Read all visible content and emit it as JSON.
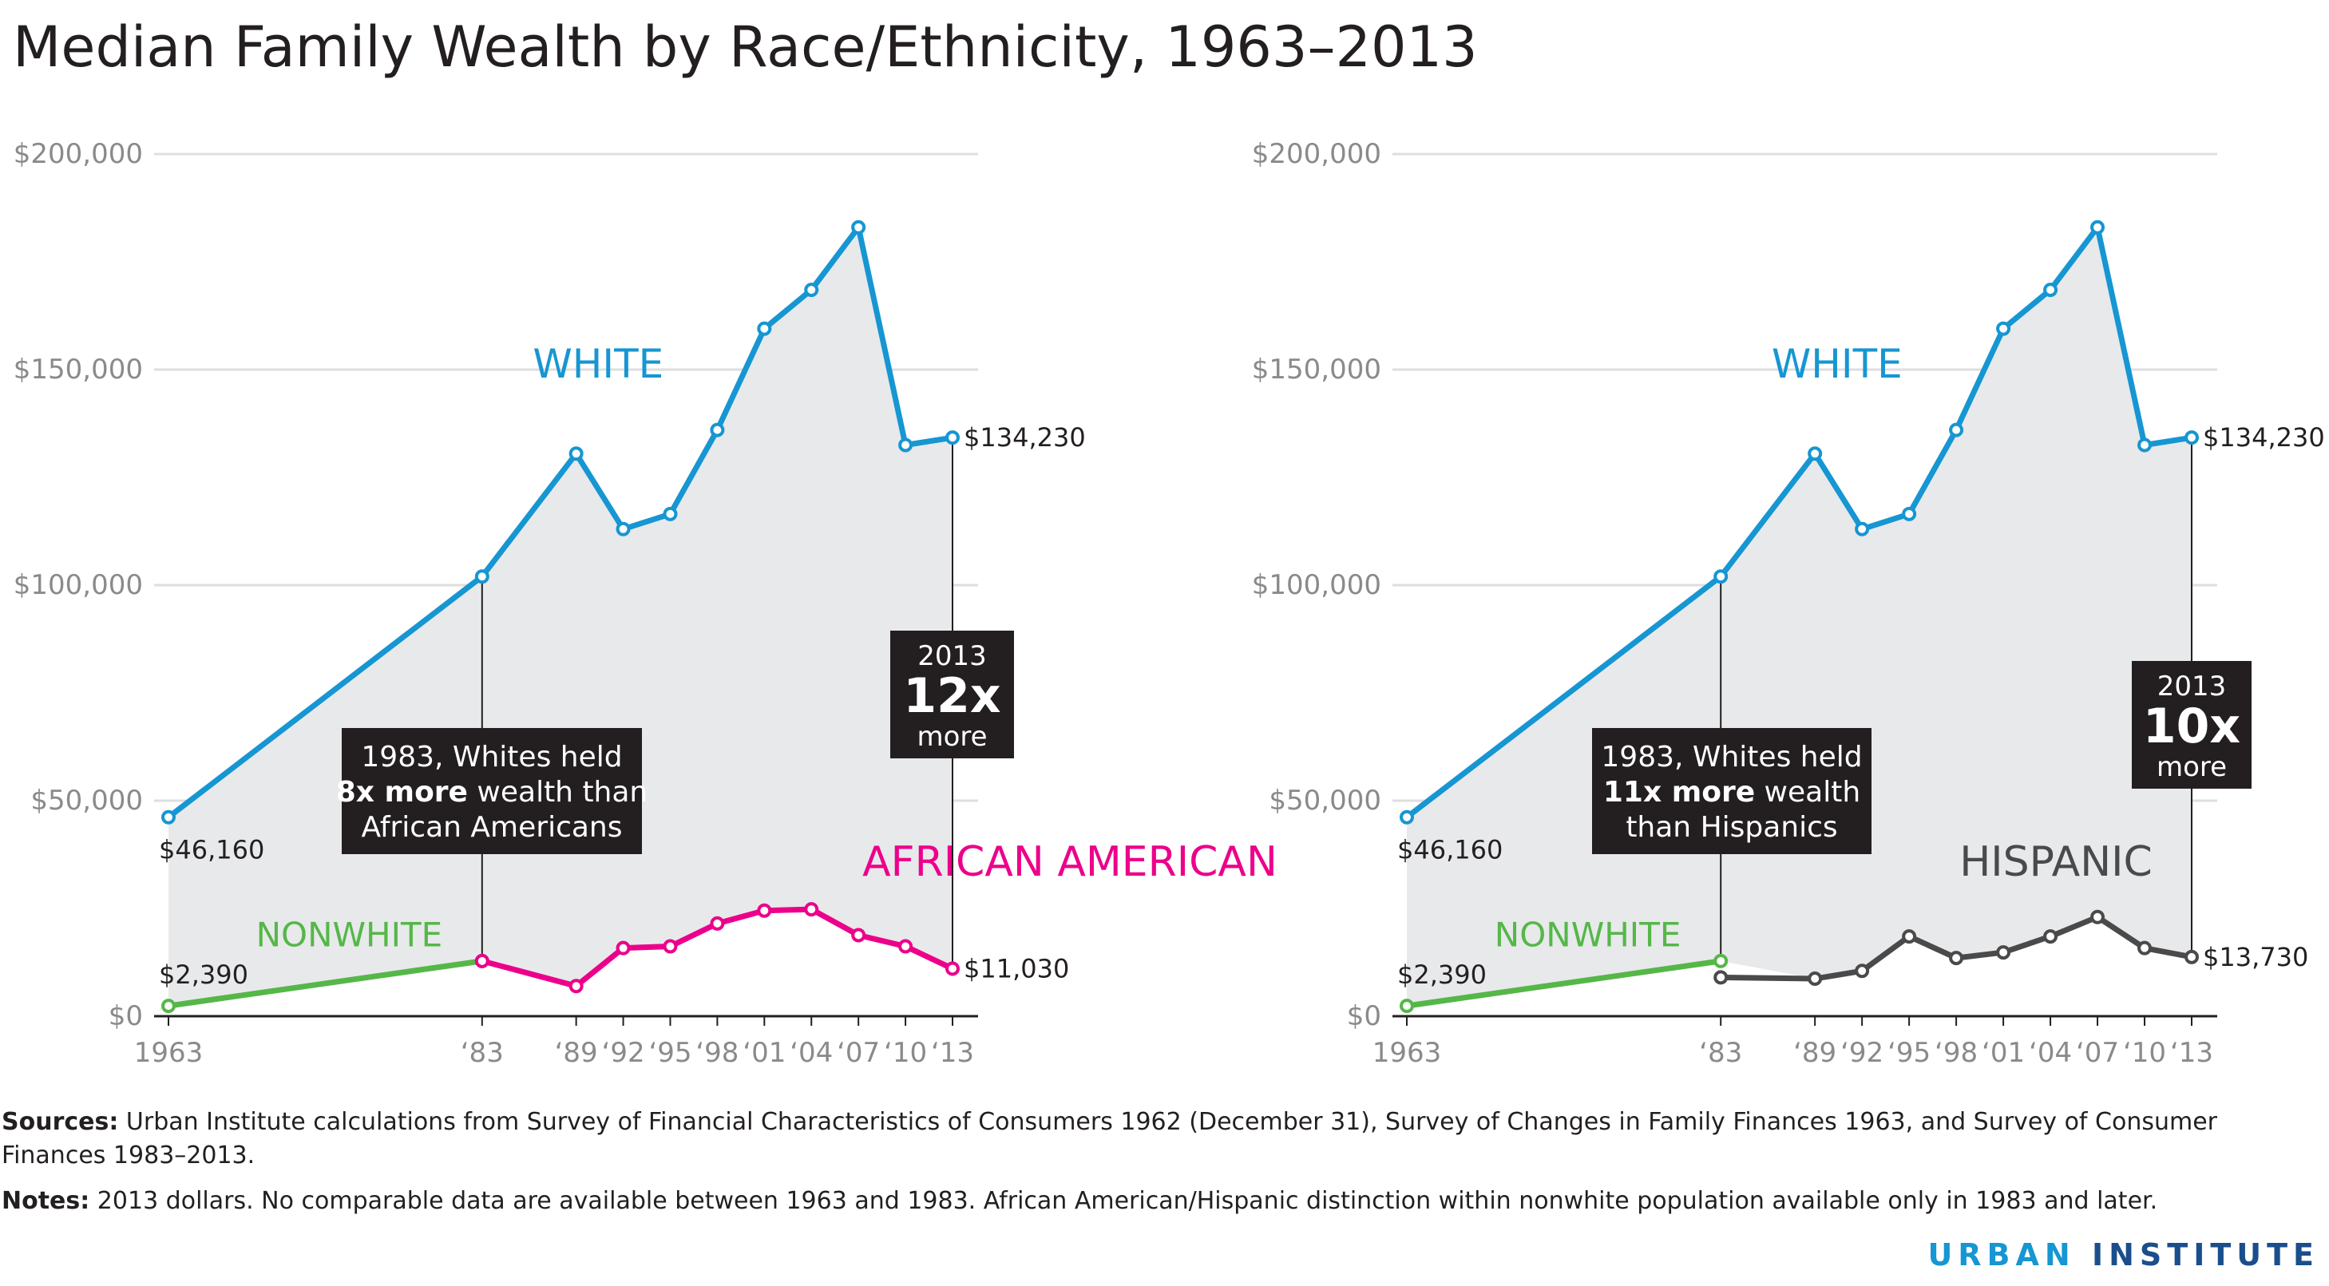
{
  "title": "Median Family Wealth by Race/Ethnicity, 1963–2013",
  "colors": {
    "white_line": "#1696d2",
    "african_american_line": "#ec008b",
    "hispanic_line": "#4a4a4a",
    "nonwhite_line": "#55b748",
    "area_fill": "#e8e9eb",
    "grid": "#dedede",
    "callout_bg": "#231f20"
  },
  "chart_data": [
    {
      "type": "line",
      "x": [
        1963,
        1983,
        1989,
        1992,
        1995,
        1998,
        2001,
        2004,
        2007,
        2010,
        2013
      ],
      "x_tick_labels": [
        "1963",
        "‘83",
        "‘89",
        "‘92",
        "‘95",
        "‘98",
        "‘01",
        "‘04",
        "‘07",
        "‘10",
        "‘13"
      ],
      "y_ticks": [
        0,
        50000,
        100000,
        150000,
        200000
      ],
      "y_tick_labels": [
        "$0",
        "$50,000",
        "$100,000",
        "$150,000",
        "$200,000"
      ],
      "ylim": [
        0,
        200000
      ],
      "grid": true,
      "series": [
        {
          "name": "WHITE",
          "x": [
            1963,
            1983,
            1989,
            1992,
            1995,
            1998,
            2001,
            2004,
            2007,
            2010,
            2013
          ],
          "values": [
            46160,
            102000,
            130500,
            113000,
            116500,
            136000,
            159500,
            168500,
            183000,
            132500,
            134230
          ]
        },
        {
          "name": "NONWHITE",
          "x": [
            1963,
            1983
          ],
          "values": [
            2390,
            12800
          ]
        },
        {
          "name": "AFRICAN AMERICAN",
          "x": [
            1983,
            1989,
            1992,
            1995,
            1998,
            2001,
            2004,
            2007,
            2010,
            2013
          ],
          "values": [
            12800,
            7000,
            15800,
            16200,
            21500,
            24500,
            24800,
            18800,
            16200,
            11030
          ]
        }
      ],
      "value_labels": {
        "white_start": "$46,160",
        "white_end": "$134,230",
        "nonwhite_start": "$2,390",
        "minority_end": "$11,030"
      },
      "callout_1983": [
        "1983, Whites held",
        "8x more",
        " wealth than",
        "African Americans"
      ],
      "callout_2013": {
        "year": "2013",
        "ratio": "12x",
        "word": "more"
      }
    },
    {
      "type": "line",
      "x": [
        1963,
        1983,
        1989,
        1992,
        1995,
        1998,
        2001,
        2004,
        2007,
        2010,
        2013
      ],
      "x_tick_labels": [
        "1963",
        "‘83",
        "‘89",
        "‘92",
        "‘95",
        "‘98",
        "‘01",
        "‘04",
        "‘07",
        "‘10",
        "‘13"
      ],
      "y_ticks": [
        0,
        50000,
        100000,
        150000,
        200000
      ],
      "y_tick_labels": [
        "$0",
        "$50,000",
        "$100,000",
        "$150,000",
        "$200,000"
      ],
      "ylim": [
        0,
        200000
      ],
      "grid": true,
      "series": [
        {
          "name": "WHITE",
          "x": [
            1963,
            1983,
            1989,
            1992,
            1995,
            1998,
            2001,
            2004,
            2007,
            2010,
            2013
          ],
          "values": [
            46160,
            102000,
            130500,
            113000,
            116500,
            136000,
            159500,
            168500,
            183000,
            132500,
            134230
          ]
        },
        {
          "name": "NONWHITE",
          "x": [
            1963,
            1983
          ],
          "values": [
            2390,
            12800
          ]
        },
        {
          "name": "HISPANIC",
          "x": [
            1983,
            1989,
            1992,
            1995,
            1998,
            2001,
            2004,
            2007,
            2010,
            2013
          ],
          "values": [
            9000,
            8700,
            10500,
            18500,
            13500,
            14800,
            18500,
            23000,
            15800,
            13730
          ]
        }
      ],
      "value_labels": {
        "white_start": "$46,160",
        "white_end": "$134,230",
        "nonwhite_start": "$2,390",
        "minority_end": "$13,730"
      },
      "callout_1983": [
        "1983, Whites held",
        "11x more",
        " wealth",
        "than Hispanics"
      ],
      "callout_2013": {
        "year": "2013",
        "ratio": "10x",
        "word": "more"
      }
    }
  ],
  "sources": {
    "label": "Sources:",
    "text": " Urban Institute calculations from Survey of Financial Characteristics of Consumers 1962 (December 31), Survey of Changes in Family Finances 1963, and Survey of Consumer Finances 1983–2013."
  },
  "notes": {
    "label": "Notes:",
    "text": " 2013 dollars. No comparable data are available between 1963 and 1983. African American/Hispanic distinction within nonwhite population available only in 1983 and later."
  },
  "logo": {
    "urban": "URBAN",
    "institute": "INSTITUTE"
  }
}
